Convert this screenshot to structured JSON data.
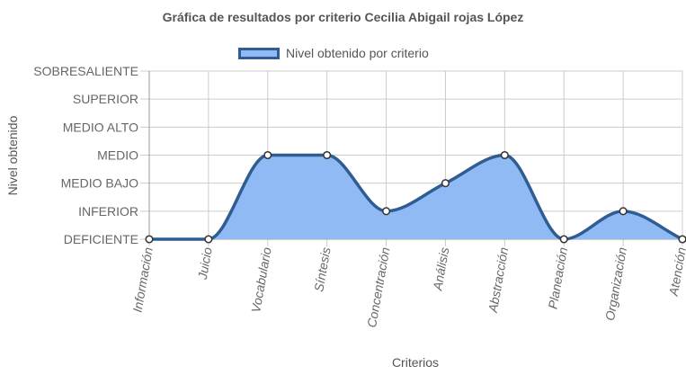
{
  "chart_data": {
    "type": "area",
    "title": "Gráfica de resultados por criterio Cecilia Abigail rojas López",
    "xlabel": "Criterios",
    "ylabel": "Nivel obtenido",
    "levels": [
      "DEFICIENTE",
      "INFERIOR",
      "MEDIO BAJO",
      "MEDIO",
      "MEDIO ALTO",
      "SUPERIOR",
      "SOBRESALIENTE"
    ],
    "categories": [
      "Información",
      "Juicio",
      "Vocabulario",
      "Síntesis",
      "Concentración",
      "Análisis",
      "Abstracción",
      "Planeación",
      "Organización",
      "Atención"
    ],
    "series": [
      {
        "name": "Nivel obtenido por criterio",
        "values": [
          0,
          0,
          3,
          3,
          1,
          2,
          3,
          0,
          1,
          0
        ],
        "labels": [
          "DEFICIENTE",
          "DEFICIENTE",
          "MEDIO",
          "MEDIO",
          "INFERIOR",
          "MEDIO BAJO",
          "MEDIO",
          "DEFICIENTE",
          "INFERIOR",
          "DEFICIENTE"
        ]
      }
    ],
    "ylim": [
      0,
      6
    ],
    "grid": true,
    "legend": "top",
    "colors": {
      "fill": "#8fbaf3",
      "line": "#2f5d92",
      "point_fill": "#ffffff",
      "point_stroke": "#333333",
      "grid": "#cccccc"
    }
  }
}
